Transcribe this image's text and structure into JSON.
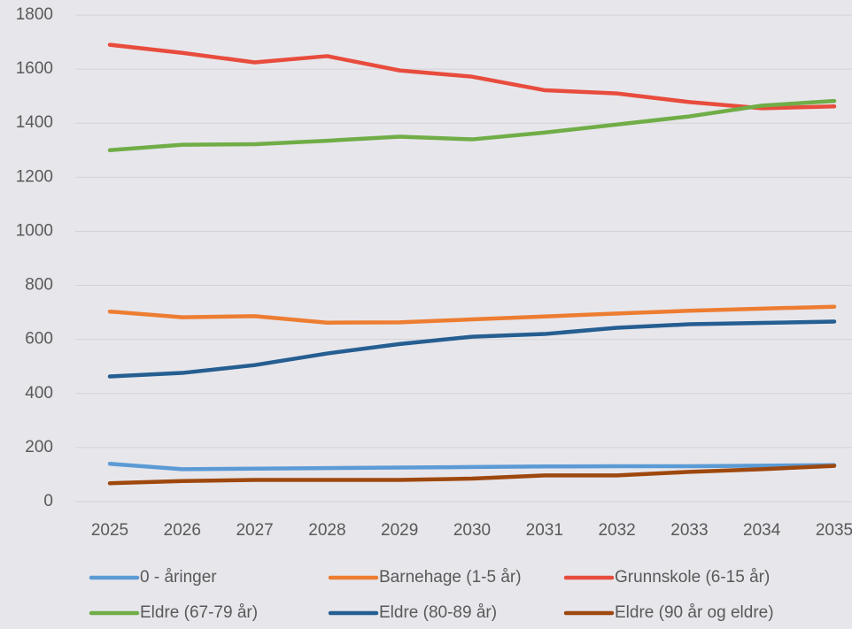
{
  "chart_data": {
    "type": "line",
    "categories": [
      "2025",
      "2026",
      "2027",
      "2028",
      "2029",
      "2030",
      "2031",
      "2032",
      "2033",
      "2034",
      "2035"
    ],
    "ylim": [
      0,
      1800
    ],
    "yticks": [
      0,
      200,
      400,
      600,
      800,
      1000,
      1200,
      1400,
      1600,
      1800
    ],
    "grid": true,
    "legend": "bottom",
    "series": [
      {
        "name": "0 - åringer",
        "color": "#5b9bd5",
        "values": [
          140,
          120,
          122,
          124,
          126,
          128,
          130,
          131,
          131,
          133,
          135
        ]
      },
      {
        "name": "Barnehage (1-5 år)",
        "color": "#ed7d31",
        "values": [
          703,
          682,
          686,
          662,
          663,
          674,
          685,
          696,
          706,
          714,
          721
        ]
      },
      {
        "name": "Grunnskole (6-15 år)",
        "color": "#e84c3d",
        "values": [
          1690,
          1660,
          1625,
          1648,
          1595,
          1572,
          1522,
          1510,
          1478,
          1455,
          1462
        ]
      },
      {
        "name": "Eldre (67-79 år)",
        "color": "#70ad47",
        "values": [
          1300,
          1320,
          1322,
          1335,
          1350,
          1340,
          1365,
          1395,
          1425,
          1465,
          1482
        ]
      },
      {
        "name": "Eldre (80-89 år)",
        "color": "#255e91",
        "values": [
          463,
          476,
          505,
          548,
          583,
          610,
          620,
          643,
          656,
          661,
          666
        ]
      },
      {
        "name": "Eldre (90 år og eldre)",
        "color": "#9e480e",
        "values": [
          68,
          76,
          80,
          80,
          80,
          85,
          97,
          97,
          110,
          120,
          132
        ]
      }
    ]
  }
}
